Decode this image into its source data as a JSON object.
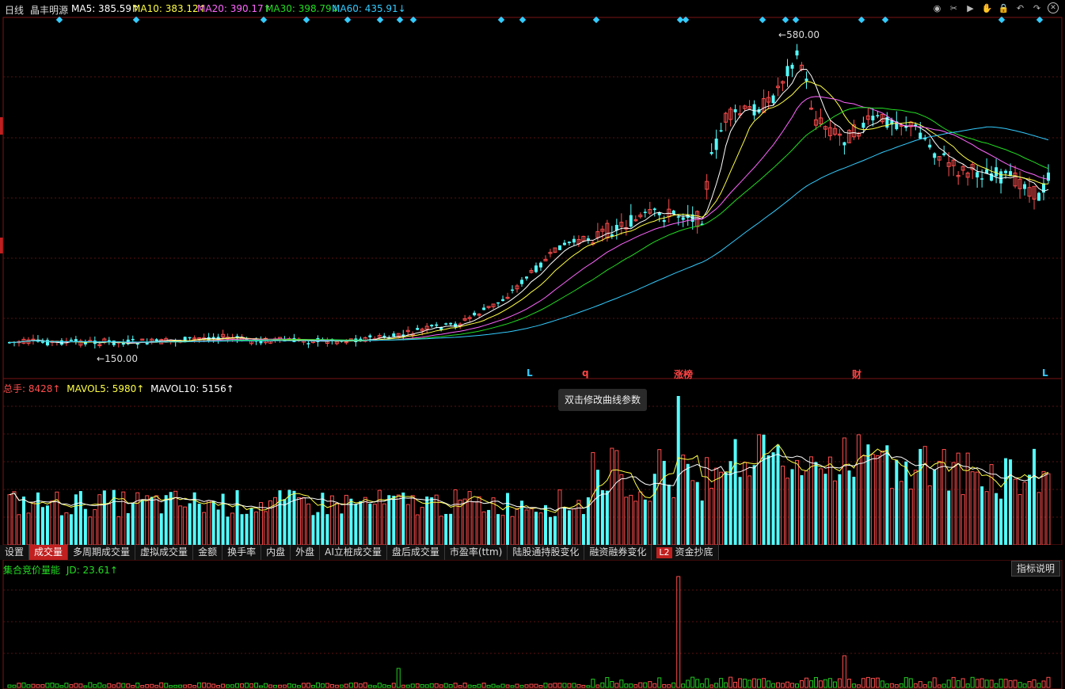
{
  "header": {
    "period": "日线",
    "stock_name": "晶丰明源",
    "ma": [
      {
        "label": "MA5: 385.59↑",
        "color": "#ffffff"
      },
      {
        "label": "MA10: 383.12↑",
        "color": "#ffff44"
      },
      {
        "label": "MA20: 390.17↑",
        "color": "#ff66ff"
      },
      {
        "label": "MA30: 398.79↓",
        "color": "#22dd22"
      },
      {
        "label": "MA60: 435.91↓",
        "color": "#33ccff"
      }
    ]
  },
  "toolbar": {
    "icons": [
      "eye-icon",
      "scissors-icon",
      "play-icon",
      "hand-icon",
      "lock-icon",
      "undo-icon",
      "redo-icon",
      "close-icon"
    ],
    "glyphs": [
      "◉",
      "✂",
      "▶",
      "✋",
      "🔒",
      "↶",
      "↷",
      "✕"
    ]
  },
  "price_chart": {
    "high_label": "580.00",
    "low_label": "150.00"
  },
  "markers": [
    {
      "text": "L",
      "color": "#33ccff"
    },
    {
      "text": "q",
      "color": "#ff4444"
    },
    {
      "text": "涨榜",
      "color": "#ff4444"
    },
    {
      "text": "财",
      "color": "#ff4444"
    },
    {
      "text": "L",
      "color": "#33ccff"
    }
  ],
  "volume_panel": {
    "total_label": "总手: 8428↑",
    "mavol5_label": "MAVOL5: 5980↑",
    "mavol10_label": "MAVOL10: 5156↑"
  },
  "tooltip": {
    "text": "双击修改曲线参数"
  },
  "tabs": [
    {
      "label": "设置"
    },
    {
      "label": "成交量"
    },
    {
      "label": "多周期成交量"
    },
    {
      "label": "虚拟成交量"
    },
    {
      "label": "金额"
    },
    {
      "label": "换手率"
    },
    {
      "label": "内盘"
    },
    {
      "label": "外盘"
    },
    {
      "label": "AI立桩成交量"
    },
    {
      "label": "盘后成交量"
    },
    {
      "label": "市盈率(ttm)"
    },
    {
      "label": "陆股通持股变化"
    },
    {
      "label": "融资融券变化"
    },
    {
      "label": "资金抄底",
      "badge": "L2"
    }
  ],
  "active_tab": "成交量",
  "indicator": {
    "name": "集合竞价量能",
    "jd_label": "JD: 23.61↑",
    "help_button": "指标说明"
  },
  "colors": {
    "up": "#ff4d4d",
    "down": "#54ffff",
    "grid": "#5a1010",
    "accent": "#c0201f"
  }
}
